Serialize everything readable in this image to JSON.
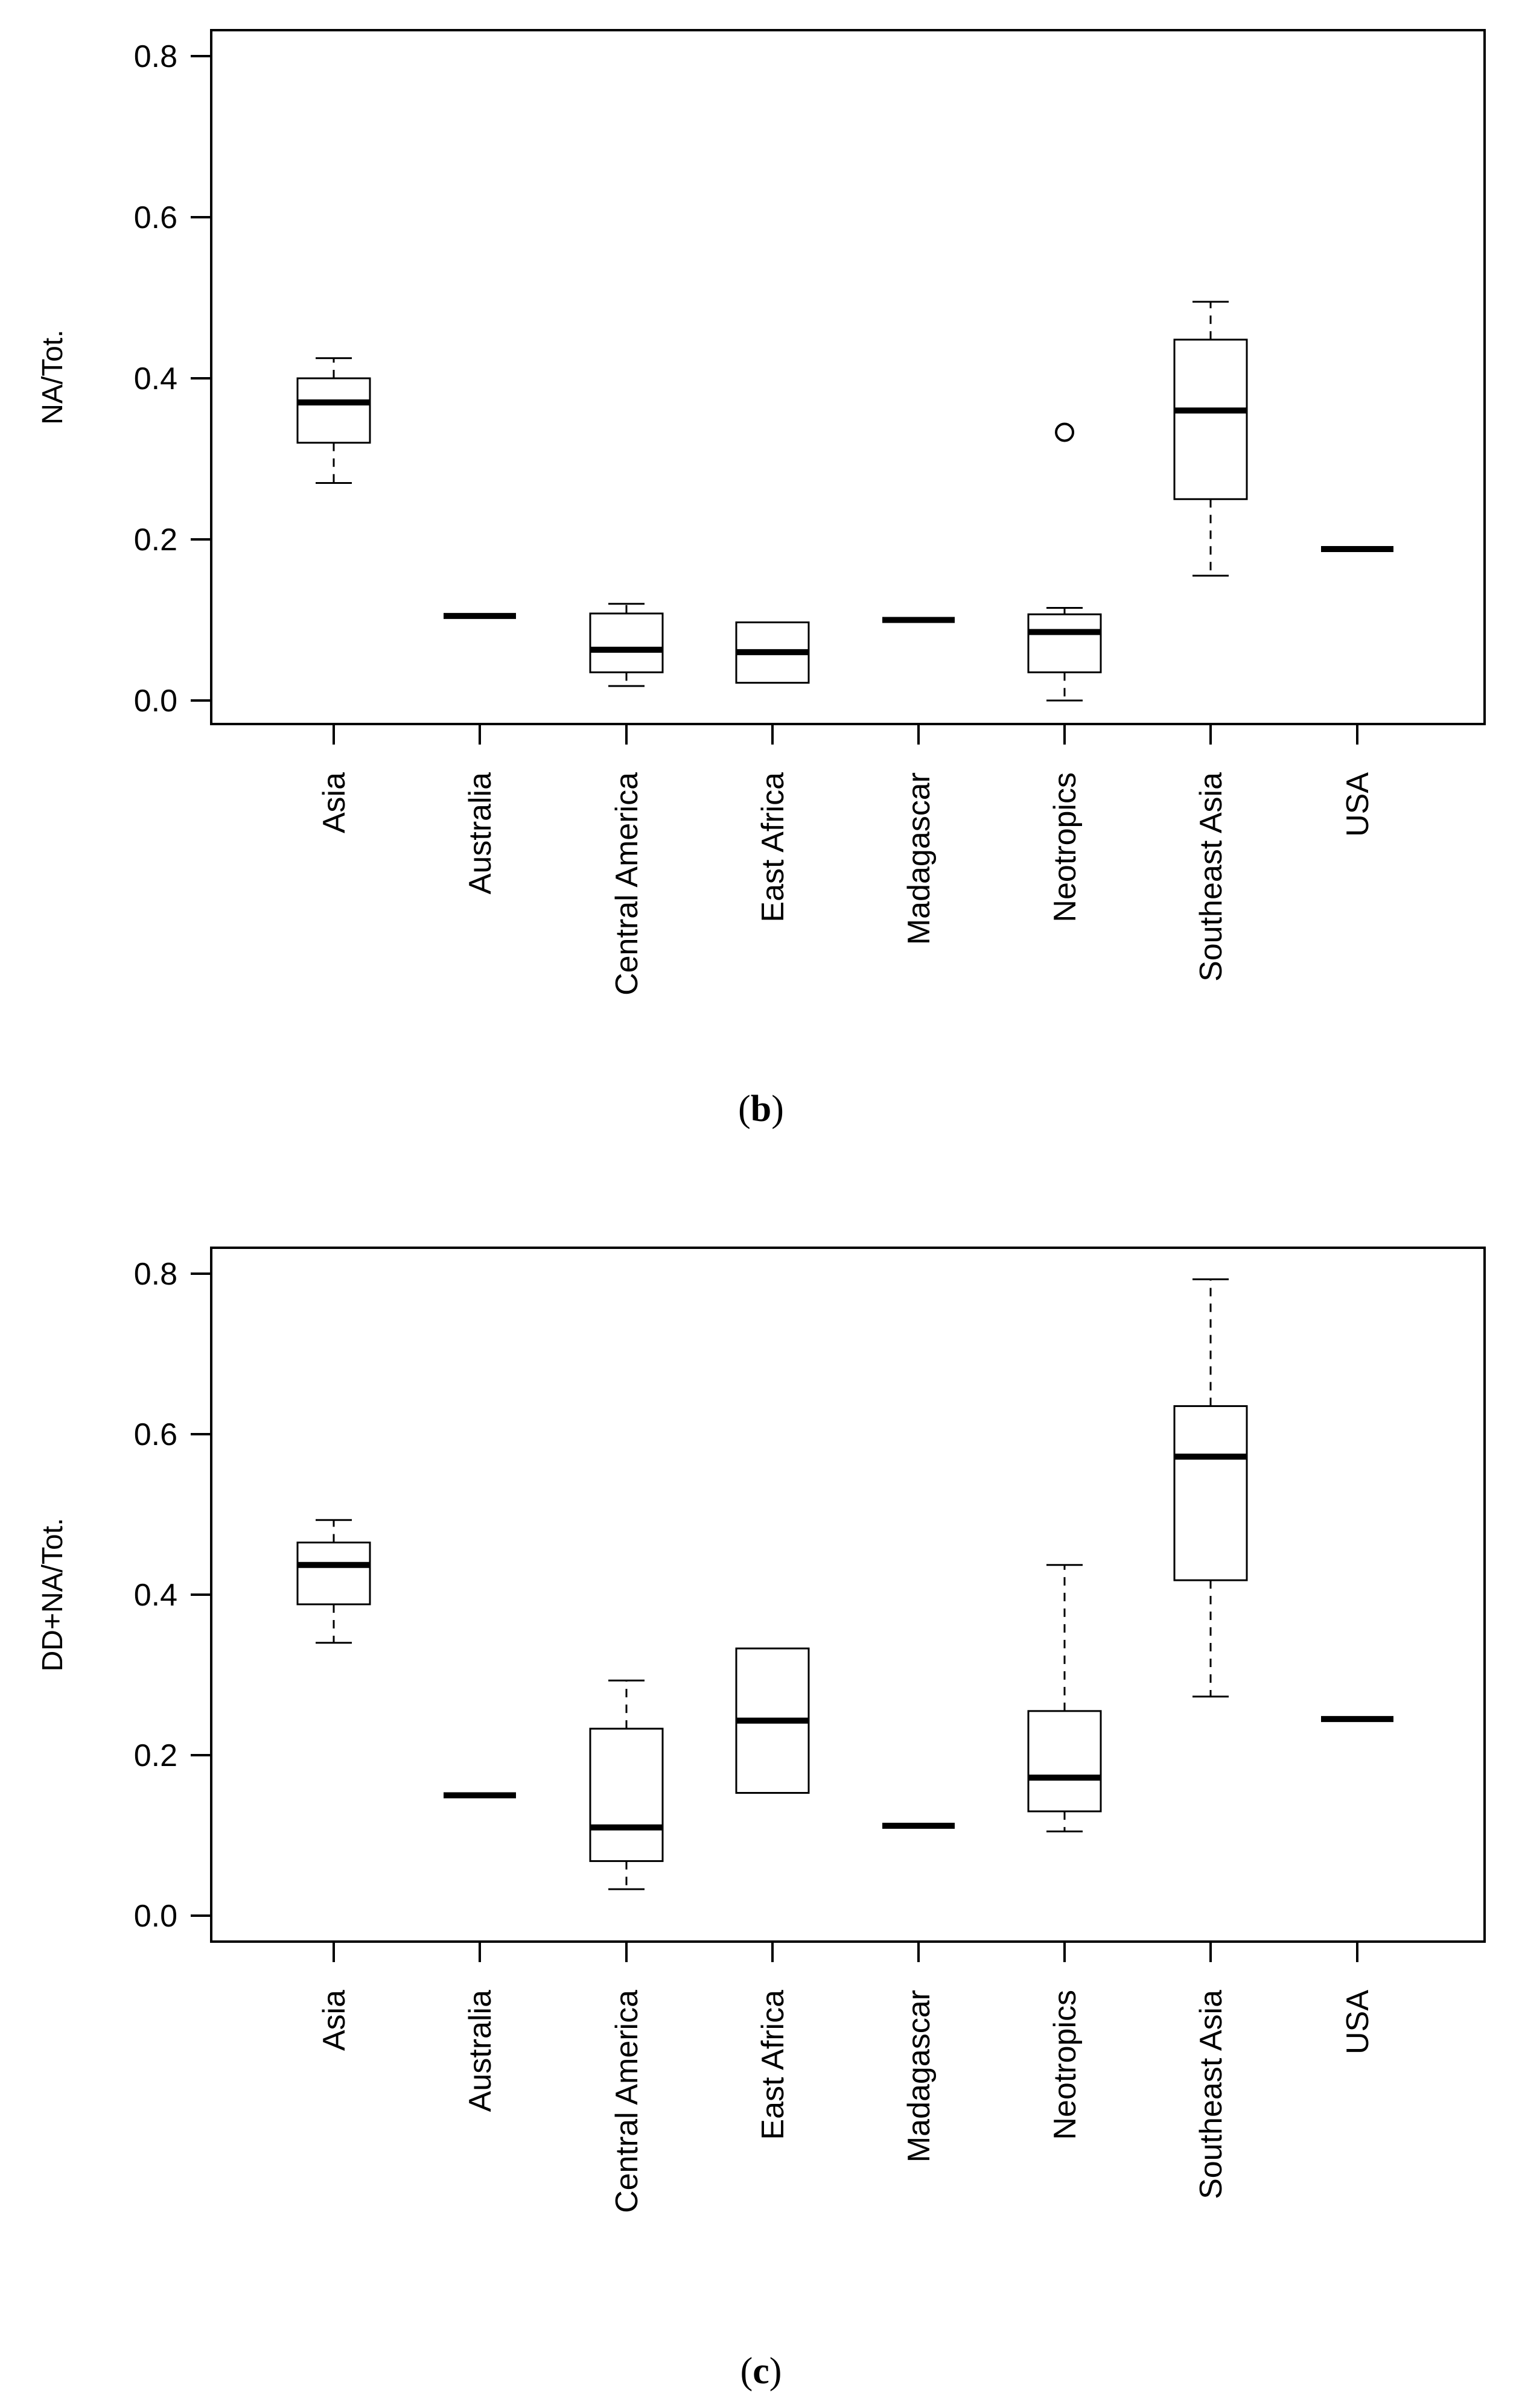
{
  "chart_data": [
    {
      "type": "boxplot",
      "panel_label": "b",
      "ylabel": "NA/Tot.",
      "ylim": [
        0.0,
        0.8
      ],
      "yticks": [
        "0.0",
        "0.2",
        "0.4",
        "0.6",
        "0.8"
      ],
      "categories": [
        "Asia",
        "Australia",
        "Central America",
        "East Africa",
        "Madagascar",
        "Neotropics",
        "Southeast Asia",
        "USA"
      ],
      "boxes": [
        {
          "category": "Asia",
          "min": 0.27,
          "q1": 0.32,
          "median": 0.37,
          "q3": 0.4,
          "max": 0.425,
          "outliers": []
        },
        {
          "category": "Australia",
          "min": 0.105,
          "q1": 0.105,
          "median": 0.105,
          "q3": 0.105,
          "max": 0.105,
          "outliers": []
        },
        {
          "category": "Central America",
          "min": 0.018,
          "q1": 0.035,
          "median": 0.063,
          "q3": 0.108,
          "max": 0.12,
          "outliers": []
        },
        {
          "category": "East Africa",
          "min": 0.022,
          "q1": 0.022,
          "median": 0.06,
          "q3": 0.097,
          "max": 0.097,
          "outliers": []
        },
        {
          "category": "Madagascar",
          "min": 0.1,
          "q1": 0.1,
          "median": 0.1,
          "q3": 0.1,
          "max": 0.1,
          "outliers": []
        },
        {
          "category": "Neotropics",
          "min": 0.0,
          "q1": 0.035,
          "median": 0.085,
          "q3": 0.107,
          "max": 0.115,
          "outliers": [
            0.333
          ]
        },
        {
          "category": "Southeast Asia",
          "min": 0.155,
          "q1": 0.25,
          "median": 0.36,
          "q3": 0.448,
          "max": 0.495,
          "outliers": []
        },
        {
          "category": "USA",
          "min": 0.188,
          "q1": 0.188,
          "median": 0.188,
          "q3": 0.188,
          "max": 0.188,
          "outliers": []
        }
      ]
    },
    {
      "type": "boxplot",
      "panel_label": "c",
      "ylabel": "DD+NA/Tot.",
      "ylim": [
        0.0,
        0.8
      ],
      "yticks": [
        "0.0",
        "0.2",
        "0.4",
        "0.6",
        "0.8"
      ],
      "categories": [
        "Asia",
        "Australia",
        "Central America",
        "East Africa",
        "Madagascar",
        "Neotropics",
        "Southeast Asia",
        "USA"
      ],
      "boxes": [
        {
          "category": "Asia",
          "min": 0.34,
          "q1": 0.388,
          "median": 0.437,
          "q3": 0.465,
          "max": 0.493,
          "outliers": []
        },
        {
          "category": "Australia",
          "min": 0.15,
          "q1": 0.15,
          "median": 0.15,
          "q3": 0.15,
          "max": 0.15,
          "outliers": []
        },
        {
          "category": "Central America",
          "min": 0.033,
          "q1": 0.068,
          "median": 0.11,
          "q3": 0.233,
          "max": 0.293,
          "outliers": []
        },
        {
          "category": "East Africa",
          "min": 0.153,
          "q1": 0.153,
          "median": 0.243,
          "q3": 0.333,
          "max": 0.333,
          "outliers": []
        },
        {
          "category": "Madagascar",
          "min": 0.112,
          "q1": 0.112,
          "median": 0.112,
          "q3": 0.112,
          "max": 0.112,
          "outliers": []
        },
        {
          "category": "Neotropics",
          "min": 0.105,
          "q1": 0.13,
          "median": 0.172,
          "q3": 0.255,
          "max": 0.437,
          "outliers": []
        },
        {
          "category": "Southeast Asia",
          "min": 0.273,
          "q1": 0.418,
          "median": 0.572,
          "q3": 0.635,
          "max": 0.793,
          "outliers": []
        },
        {
          "category": "USA",
          "min": 0.245,
          "q1": 0.245,
          "median": 0.245,
          "q3": 0.245,
          "max": 0.245,
          "outliers": []
        }
      ]
    }
  ]
}
